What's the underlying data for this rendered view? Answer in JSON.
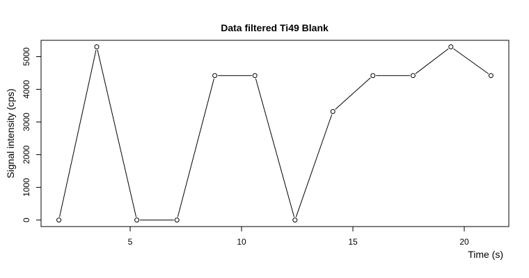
{
  "chart_data": {
    "type": "line",
    "title": "Data filtered Ti49 Blank",
    "xlabel": "Time (s)",
    "ylabel": "Signal intensity (cps)",
    "xlim": [
      1.0,
      22.0
    ],
    "ylim": [
      -200,
      5500
    ],
    "x_ticks": [
      5,
      10,
      15,
      20
    ],
    "y_ticks": [
      0,
      1000,
      2000,
      3000,
      4000,
      5000
    ],
    "grid": false,
    "legend": "none",
    "series": [
      {
        "x": [
          1.8,
          3.5,
          5.3,
          7.1,
          8.8,
          10.6,
          12.4,
          14.1,
          15.9,
          17.7,
          19.4,
          21.2
        ],
        "y": [
          0,
          5300,
          0,
          0,
          4420,
          4420,
          0,
          3320,
          4420,
          4420,
          5300,
          4420
        ]
      }
    ]
  }
}
